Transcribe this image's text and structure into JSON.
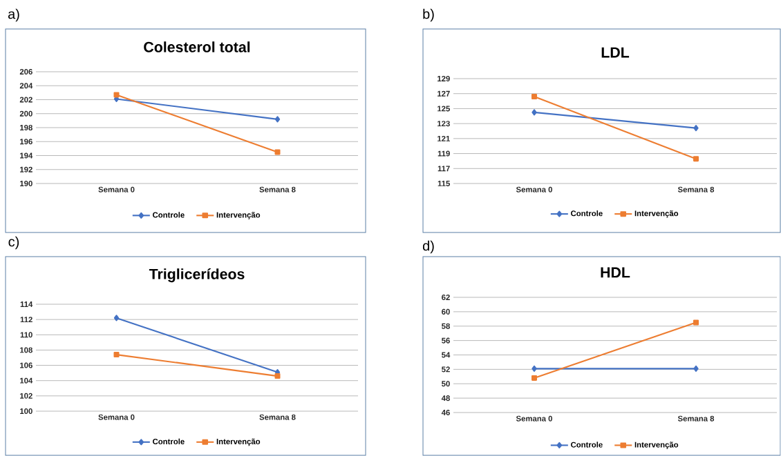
{
  "chart_data": [
    {
      "type": "line",
      "title": "Colesterol total",
      "annotations": [
        "a)"
      ],
      "categories": [
        "Semana 0",
        "Semana 8"
      ],
      "ylim": [
        190,
        206
      ],
      "yticks": [
        190,
        192,
        194,
        196,
        198,
        200,
        202,
        204,
        206
      ],
      "grid": "y",
      "legend": "bottom",
      "series": [
        {
          "name": "Controle",
          "color": "#4472c4",
          "marker": "diamond",
          "values": [
            202.1,
            199.2
          ]
        },
        {
          "name": "Intervenção",
          "color": "#ed7d31",
          "marker": "square",
          "values": [
            202.7,
            194.5
          ]
        }
      ]
    },
    {
      "type": "line",
      "title": "LDL",
      "annotations": [
        "b)"
      ],
      "categories": [
        "Semana 0",
        "Semana 8"
      ],
      "ylim": [
        115,
        129
      ],
      "yticks": [
        115,
        117,
        119,
        121,
        123,
        125,
        127,
        129
      ],
      "grid": "y",
      "legend": "bottom",
      "series": [
        {
          "name": "Controle",
          "color": "#4472c4",
          "marker": "diamond",
          "values": [
            124.5,
            122.4
          ]
        },
        {
          "name": "Intervenção",
          "color": "#ed7d31",
          "marker": "square",
          "values": [
            126.6,
            118.3
          ]
        }
      ]
    },
    {
      "type": "line",
      "title": "Triglicerídeos",
      "annotations": [
        "c)"
      ],
      "categories": [
        "Semana 0",
        "Semana 8"
      ],
      "ylim": [
        100,
        114
      ],
      "yticks": [
        100,
        102,
        104,
        106,
        108,
        110,
        112,
        114
      ],
      "grid": "y",
      "legend": "bottom",
      "series": [
        {
          "name": "Controle",
          "color": "#4472c4",
          "marker": "diamond",
          "values": [
            112.2,
            105.1
          ]
        },
        {
          "name": "Intervenção",
          "color": "#ed7d31",
          "marker": "square",
          "values": [
            107.4,
            104.6
          ]
        }
      ]
    },
    {
      "type": "line",
      "title": "HDL",
      "annotations": [
        "d)"
      ],
      "categories": [
        "Semana 0",
        "Semana 8"
      ],
      "ylim": [
        46,
        62
      ],
      "yticks": [
        46,
        48,
        50,
        52,
        54,
        56,
        58,
        60,
        62
      ],
      "grid": "y",
      "legend": "bottom",
      "series": [
        {
          "name": "Controle",
          "color": "#4472c4",
          "marker": "diamond",
          "values": [
            52.1,
            52.1
          ]
        },
        {
          "name": "Intervenção",
          "color": "#ed7d31",
          "marker": "square",
          "values": [
            50.8,
            58.5
          ]
        }
      ]
    }
  ]
}
